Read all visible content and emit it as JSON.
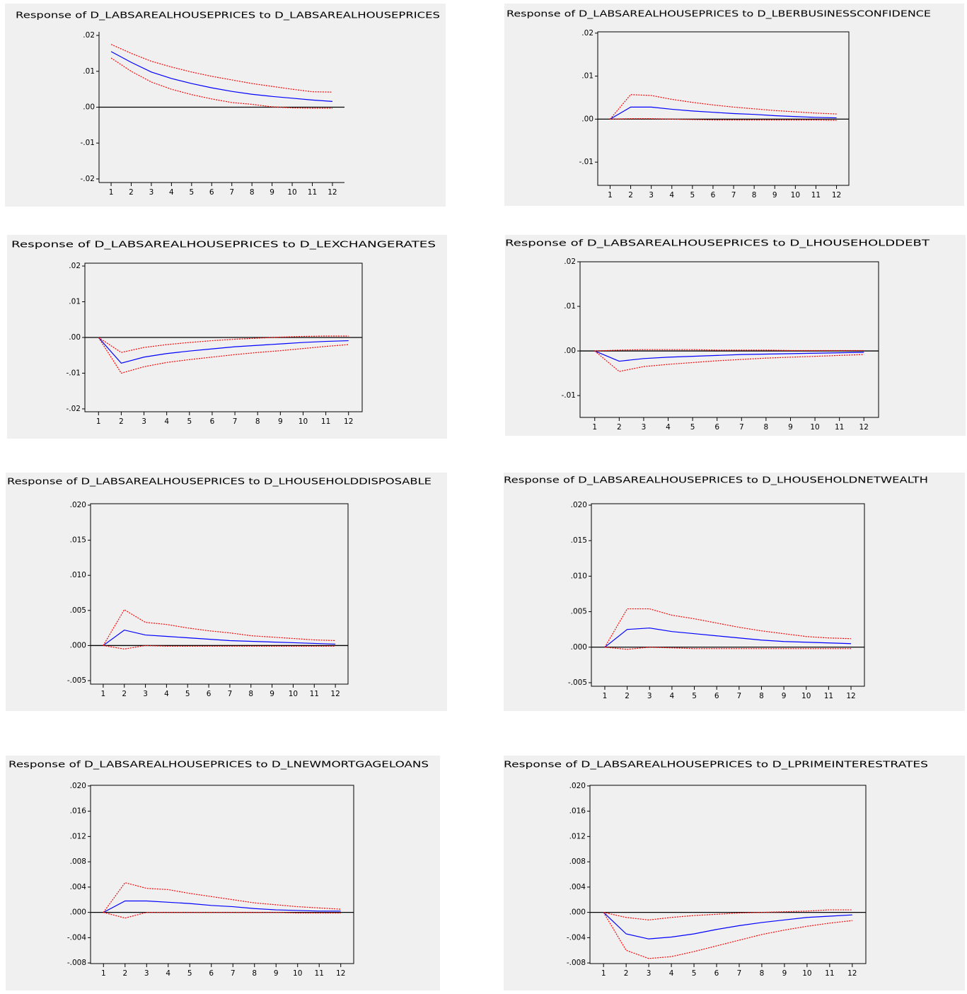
{
  "chart_data": [
    {
      "type": "line",
      "title": "Response of D_LABSAREALHOUSEPRICES to D_LABSAREALHOUSEPRICES",
      "frame": false,
      "zero_line": true,
      "x": [
        1,
        2,
        3,
        4,
        5,
        6,
        7,
        8,
        9,
        10,
        11,
        12
      ],
      "xlim": [
        0.4,
        12.6
      ],
      "xticks": [
        1,
        2,
        3,
        4,
        5,
        6,
        7,
        8,
        9,
        10,
        11,
        12
      ],
      "ylim": [
        -0.021,
        0.021
      ],
      "yticks": [
        {
          "value": 0.02,
          "label": ".02"
        },
        {
          "value": 0.01,
          "label": ".01"
        },
        {
          "value": 0,
          "label": ".00"
        },
        {
          "value": -0.01,
          "label": "-.01"
        },
        {
          "value": -0.02,
          "label": "-.02"
        }
      ],
      "series": [
        {
          "color": "#0000ff",
          "style": "solid",
          "values": [
            0.0155,
            0.0125,
            0.0098,
            0.008,
            0.0066,
            0.0054,
            0.0044,
            0.0036,
            0.003,
            0.0025,
            0.002,
            0.0016
          ]
        },
        {
          "color": "#ff0000",
          "style": "dotted",
          "values": [
            0.0175,
            0.015,
            0.0128,
            0.0112,
            0.0098,
            0.0086,
            0.0076,
            0.0066,
            0.0058,
            0.005,
            0.0043,
            0.0042
          ]
        },
        {
          "color": "#ff0000",
          "style": "dotted",
          "values": [
            0.0137,
            0.01,
            0.007,
            0.005,
            0.0035,
            0.0023,
            0.0013,
            0.0008,
            0.0001,
            -0.0002,
            -0.0003,
            -0.0003
          ]
        }
      ]
    },
    {
      "type": "line",
      "title": "Response of D_LABSAREALHOUSEPRICES to D_LBERBUSINESSCONFIDENCE",
      "frame": true,
      "zero_line": true,
      "x": [
        1,
        2,
        3,
        4,
        5,
        6,
        7,
        8,
        9,
        10,
        11,
        12
      ],
      "xlim": [
        0.4,
        12.6
      ],
      "xticks": [
        1,
        2,
        3,
        4,
        5,
        6,
        7,
        8,
        9,
        10,
        11,
        12
      ],
      "ylim": [
        -0.0154,
        0.0203
      ],
      "yticks": [
        {
          "value": 0.02,
          "label": ".02"
        },
        {
          "value": 0.01,
          "label": ".01"
        },
        {
          "value": 0,
          "label": ".00"
        },
        {
          "value": -0.01,
          "label": "-.01"
        }
      ],
      "series": [
        {
          "color": "#0000ff",
          "style": "solid",
          "values": [
            0,
            0.0028,
            0.0028,
            0.0023,
            0.0019,
            0.0016,
            0.0013,
            0.0011,
            0.0008,
            0.0006,
            0.0004,
            0.0003
          ]
        },
        {
          "color": "#ff0000",
          "style": "dotted",
          "values": [
            0,
            0.0057,
            0.0055,
            0.0046,
            0.0039,
            0.0033,
            0.0028,
            0.0024,
            0.002,
            0.0017,
            0.0014,
            0.0012
          ]
        },
        {
          "color": "#ff0000",
          "style": "dotted",
          "values": [
            0,
            0.0001,
            0.0001,
            0,
            -0.0001,
            -0.0002,
            -0.0002,
            -0.0002,
            -0.0002,
            -0.0002,
            -0.0002,
            -0.0003
          ]
        }
      ]
    },
    {
      "type": "line",
      "title": "Response of D_LABSAREALHOUSEPRICES to D_LEXCHANGERATES",
      "frame": true,
      "zero_line": true,
      "x": [
        1,
        2,
        3,
        4,
        5,
        6,
        7,
        8,
        9,
        10,
        11,
        12
      ],
      "xlim": [
        0.4,
        12.6
      ],
      "xticks": [
        1,
        2,
        3,
        4,
        5,
        6,
        7,
        8,
        9,
        10,
        11,
        12
      ],
      "ylim": [
        -0.0208,
        0.0208
      ],
      "yticks": [
        {
          "value": 0.02,
          "label": ".02"
        },
        {
          "value": 0.01,
          "label": ".01"
        },
        {
          "value": 0,
          "label": ".00"
        },
        {
          "value": -0.01,
          "label": "-.01"
        },
        {
          "value": -0.02,
          "label": "-.02"
        }
      ],
      "series": [
        {
          "color": "#0000ff",
          "style": "solid",
          "values": [
            0,
            -0.0072,
            -0.0055,
            -0.0045,
            -0.0038,
            -0.0032,
            -0.0026,
            -0.0022,
            -0.0018,
            -0.0014,
            -0.0011,
            -0.0009
          ]
        },
        {
          "color": "#ff0000",
          "style": "dotted",
          "values": [
            0,
            -0.0042,
            -0.0028,
            -0.002,
            -0.0014,
            -0.0009,
            -0.0005,
            -0.0002,
            0.0001,
            0.0003,
            0.0004,
            0.0004
          ]
        },
        {
          "color": "#ff0000",
          "style": "dotted",
          "values": [
            0,
            -0.01,
            -0.0082,
            -0.007,
            -0.0062,
            -0.0055,
            -0.0048,
            -0.0042,
            -0.0037,
            -0.0031,
            -0.0025,
            -0.002
          ]
        }
      ]
    },
    {
      "type": "line",
      "title": "Response of D_LABSAREALHOUSEPRICES to D_LHOUSEHOLDDEBT",
      "frame": true,
      "zero_line": true,
      "x": [
        1,
        2,
        3,
        4,
        5,
        6,
        7,
        8,
        9,
        10,
        11,
        12
      ],
      "xlim": [
        0.4,
        12.6
      ],
      "xticks": [
        1,
        2,
        3,
        4,
        5,
        6,
        7,
        8,
        9,
        10,
        11,
        12
      ],
      "ylim": [
        -0.0149,
        0.02
      ],
      "yticks": [
        {
          "value": 0.02,
          "label": ".02"
        },
        {
          "value": 0.01,
          "label": ".01"
        },
        {
          "value": 0,
          "label": ".00"
        },
        {
          "value": -0.01,
          "label": "-.01"
        }
      ],
      "series": [
        {
          "color": "#0000ff",
          "style": "solid",
          "values": [
            0,
            -0.0023,
            -0.0017,
            -0.0014,
            -0.0012,
            -0.001,
            -0.0008,
            -0.0007,
            -0.0006,
            -0.0005,
            -0.0004,
            -0.0003
          ]
        },
        {
          "color": "#ff0000",
          "style": "dotted",
          "values": [
            0,
            0.0002,
            0.0003,
            0.0003,
            0.0003,
            0.0002,
            0.0002,
            0.0002,
            0.0001,
            0.0001,
            0.0001,
            0.0001
          ]
        },
        {
          "color": "#ff0000",
          "style": "dotted",
          "values": [
            0,
            -0.0046,
            -0.0035,
            -0.003,
            -0.0026,
            -0.0022,
            -0.0019,
            -0.0016,
            -0.0014,
            -0.0012,
            -0.001,
            -0.0008
          ]
        }
      ]
    },
    {
      "type": "line",
      "title": "Response of D_LABSAREALHOUSEPRICES to D_LHOUSEHOLDDISPOSABLE",
      "frame": true,
      "zero_line": true,
      "x": [
        1,
        2,
        3,
        4,
        5,
        6,
        7,
        8,
        9,
        10,
        11,
        12
      ],
      "xlim": [
        0.4,
        12.6
      ],
      "xticks": [
        1,
        2,
        3,
        4,
        5,
        6,
        7,
        8,
        9,
        10,
        11,
        12
      ],
      "ylim": [
        -0.0055,
        0.0202
      ],
      "yticks": [
        {
          "value": 0.02,
          "label": ".020"
        },
        {
          "value": 0.015,
          "label": ".015"
        },
        {
          "value": 0.01,
          "label": ".010"
        },
        {
          "value": 0.005,
          "label": ".005"
        },
        {
          "value": 0,
          "label": ".000"
        },
        {
          "value": -0.005,
          "label": "-.005"
        }
      ],
      "series": [
        {
          "color": "#0000ff",
          "style": "solid",
          "values": [
            0,
            0.0022,
            0.0015,
            0.0013,
            0.0011,
            0.0009,
            0.0007,
            0.0006,
            0.0005,
            0.0004,
            0.0003,
            0.0002
          ]
        },
        {
          "color": "#ff0000",
          "style": "dotted",
          "values": [
            0,
            0.0051,
            0.0033,
            0.003,
            0.0025,
            0.0021,
            0.0018,
            0.0014,
            0.0012,
            0.001,
            0.0008,
            0.0007
          ]
        },
        {
          "color": "#ff0000",
          "style": "dotted",
          "values": [
            0,
            -0.0005,
            0,
            -0.0001,
            -0.0001,
            -0.0001,
            -0.0001,
            -0.0001,
            -0.0001,
            -0.0001,
            -0.0001,
            -0.0001
          ]
        }
      ]
    },
    {
      "type": "line",
      "title": "Response of D_LABSAREALHOUSEPRICES to D_LHOUSEHOLDNETWEALTH",
      "frame": true,
      "zero_line": true,
      "x": [
        1,
        2,
        3,
        4,
        5,
        6,
        7,
        8,
        9,
        10,
        11,
        12
      ],
      "xlim": [
        0.4,
        12.6
      ],
      "xticks": [
        1,
        2,
        3,
        4,
        5,
        6,
        7,
        8,
        9,
        10,
        11,
        12
      ],
      "ylim": [
        -0.0055,
        0.0202
      ],
      "yticks": [
        {
          "value": 0.02,
          "label": ".020"
        },
        {
          "value": 0.015,
          "label": ".015"
        },
        {
          "value": 0.01,
          "label": ".010"
        },
        {
          "value": 0.005,
          "label": ".005"
        },
        {
          "value": 0,
          "label": ".000"
        },
        {
          "value": -0.005,
          "label": "-.005"
        }
      ],
      "series": [
        {
          "color": "#0000ff",
          "style": "solid",
          "values": [
            0,
            0.0025,
            0.0027,
            0.0022,
            0.0019,
            0.0016,
            0.0013,
            0.001,
            0.0008,
            0.0007,
            0.0006,
            0.0005
          ]
        },
        {
          "color": "#ff0000",
          "style": "dotted",
          "values": [
            0,
            0.0054,
            0.0054,
            0.0045,
            0.004,
            0.0034,
            0.0028,
            0.0023,
            0.0019,
            0.0015,
            0.0013,
            0.0012
          ]
        },
        {
          "color": "#ff0000",
          "style": "dotted",
          "values": [
            0,
            -0.0003,
            0,
            -0.0001,
            -0.0002,
            -0.0002,
            -0.0002,
            -0.0002,
            -0.0002,
            -0.0002,
            -0.0002,
            -0.0002
          ]
        }
      ]
    },
    {
      "type": "line",
      "title": "Response of D_LABSAREALHOUSEPRICES to D_LNEWMORTGAGELOANS",
      "frame": true,
      "zero_line": true,
      "x": [
        1,
        2,
        3,
        4,
        5,
        6,
        7,
        8,
        9,
        10,
        11,
        12
      ],
      "xlim": [
        0.4,
        12.6
      ],
      "xticks": [
        1,
        2,
        3,
        4,
        5,
        6,
        7,
        8,
        9,
        10,
        11,
        12
      ],
      "ylim": [
        -0.0081,
        0.0201
      ],
      "yticks": [
        {
          "value": 0.02,
          "label": ".020"
        },
        {
          "value": 0.016,
          "label": ".016"
        },
        {
          "value": 0.012,
          "label": ".012"
        },
        {
          "value": 0.008,
          "label": ".008"
        },
        {
          "value": 0.004,
          "label": ".004"
        },
        {
          "value": 0,
          "label": ".000"
        },
        {
          "value": -0.004,
          "label": "-.004"
        },
        {
          "value": -0.008,
          "label": "-.008"
        }
      ],
      "series": [
        {
          "color": "#0000ff",
          "style": "solid",
          "values": [
            0,
            0.0018,
            0.0018,
            0.0016,
            0.0014,
            0.0011,
            0.0009,
            0.0006,
            0.0004,
            0.0003,
            0.0002,
            0.0002
          ]
        },
        {
          "color": "#ff0000",
          "style": "dotted",
          "values": [
            0,
            0.0047,
            0.0038,
            0.0036,
            0.003,
            0.0025,
            0.002,
            0.0015,
            0.0012,
            0.0009,
            0.0007,
            0.0005
          ]
        },
        {
          "color": "#ff0000",
          "style": "dotted",
          "values": [
            0,
            -0.0009,
            0,
            0,
            0,
            0,
            0,
            0,
            0,
            -0.0001,
            -0.0001,
            -0.0001
          ]
        }
      ]
    },
    {
      "type": "line",
      "title": "Response of D_LABSAREALHOUSEPRICES to D_LPRIMEINTERESTRATES",
      "frame": true,
      "zero_line": true,
      "x": [
        1,
        2,
        3,
        4,
        5,
        6,
        7,
        8,
        9,
        10,
        11,
        12
      ],
      "xlim": [
        0.4,
        12.6
      ],
      "xticks": [
        1,
        2,
        3,
        4,
        5,
        6,
        7,
        8,
        9,
        10,
        11,
        12
      ],
      "ylim": [
        -0.0081,
        0.0201
      ],
      "yticks": [
        {
          "value": 0.02,
          "label": ".020"
        },
        {
          "value": 0.016,
          "label": ".016"
        },
        {
          "value": 0.012,
          "label": ".012"
        },
        {
          "value": 0.008,
          "label": ".008"
        },
        {
          "value": 0.004,
          "label": ".004"
        },
        {
          "value": 0,
          "label": ".000"
        },
        {
          "value": -0.004,
          "label": "-.004"
        },
        {
          "value": -0.008,
          "label": "-.008"
        }
      ],
      "series": [
        {
          "color": "#0000ff",
          "style": "solid",
          "values": [
            0,
            -0.0034,
            -0.0042,
            -0.0039,
            -0.0034,
            -0.0027,
            -0.0021,
            -0.0016,
            -0.0012,
            -0.0008,
            -0.0006,
            -0.0004
          ]
        },
        {
          "color": "#ff0000",
          "style": "dotted",
          "values": [
            0,
            -0.0008,
            -0.0012,
            -0.0008,
            -0.0005,
            -0.0003,
            -0.0001,
            0,
            0.0001,
            0.0002,
            0.0004,
            0.0004
          ]
        },
        {
          "color": "#ff0000",
          "style": "dotted",
          "values": [
            0,
            -0.006,
            -0.0073,
            -0.007,
            -0.0062,
            -0.0053,
            -0.0044,
            -0.0035,
            -0.0028,
            -0.0022,
            -0.0017,
            -0.0013
          ]
        }
      ]
    }
  ]
}
